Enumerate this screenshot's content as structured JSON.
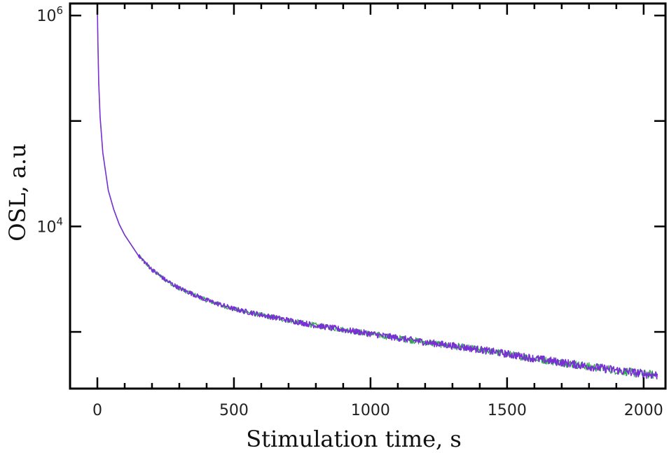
{
  "chart_data": {
    "type": "line",
    "title": "",
    "xlabel": "Stimulation time,  s",
    "ylabel": "OSL,  a.u",
    "xlim": [
      -100,
      2080
    ],
    "ylim": [
      290,
      1300000
    ],
    "y_scale": "log",
    "grid": false,
    "legend": "none",
    "x_ticks": [
      {
        "value": 0,
        "label": "0"
      },
      {
        "value": 500,
        "label": "500"
      },
      {
        "value": 1000,
        "label": "1000"
      },
      {
        "value": 1500,
        "label": "1500"
      },
      {
        "value": 2000,
        "label": "2000"
      }
    ],
    "y_ticks": [
      {
        "value": 10000,
        "base": "10",
        "exp": "4"
      },
      {
        "value": 1000000,
        "base": "10",
        "exp": "6"
      }
    ],
    "series": [
      {
        "color": "#7a2fd6",
        "x": [
          0,
          2,
          5,
          10,
          20,
          40,
          60,
          80,
          100,
          150,
          200,
          250,
          300,
          400,
          500,
          600,
          800,
          1000,
          1200,
          1400,
          1600,
          1800,
          2000,
          2050
        ],
        "y": [
          1200000,
          550000,
          230000,
          110000,
          50000,
          22000,
          14500,
          10500,
          8300,
          5300,
          3900,
          3100,
          2600,
          2000,
          1650,
          1450,
          1150,
          960,
          800,
          680,
          560,
          470,
          400,
          390
        ]
      },
      {
        "color": "#2aa84a",
        "x": [
          0,
          2,
          5,
          10,
          20,
          40,
          60,
          80,
          100,
          150,
          200,
          250,
          300,
          400,
          500,
          600,
          800,
          1000,
          1200,
          1400,
          1600,
          1800,
          2000,
          2050
        ],
        "y": [
          1180000,
          540000,
          225000,
          108000,
          49500,
          21800,
          14400,
          10400,
          8250,
          5280,
          3880,
          3090,
          2590,
          1995,
          1645,
          1445,
          1148,
          958,
          798,
          679,
          559,
          469,
          399,
          389
        ]
      }
    ]
  },
  "colors": {
    "frame": "#000000"
  }
}
